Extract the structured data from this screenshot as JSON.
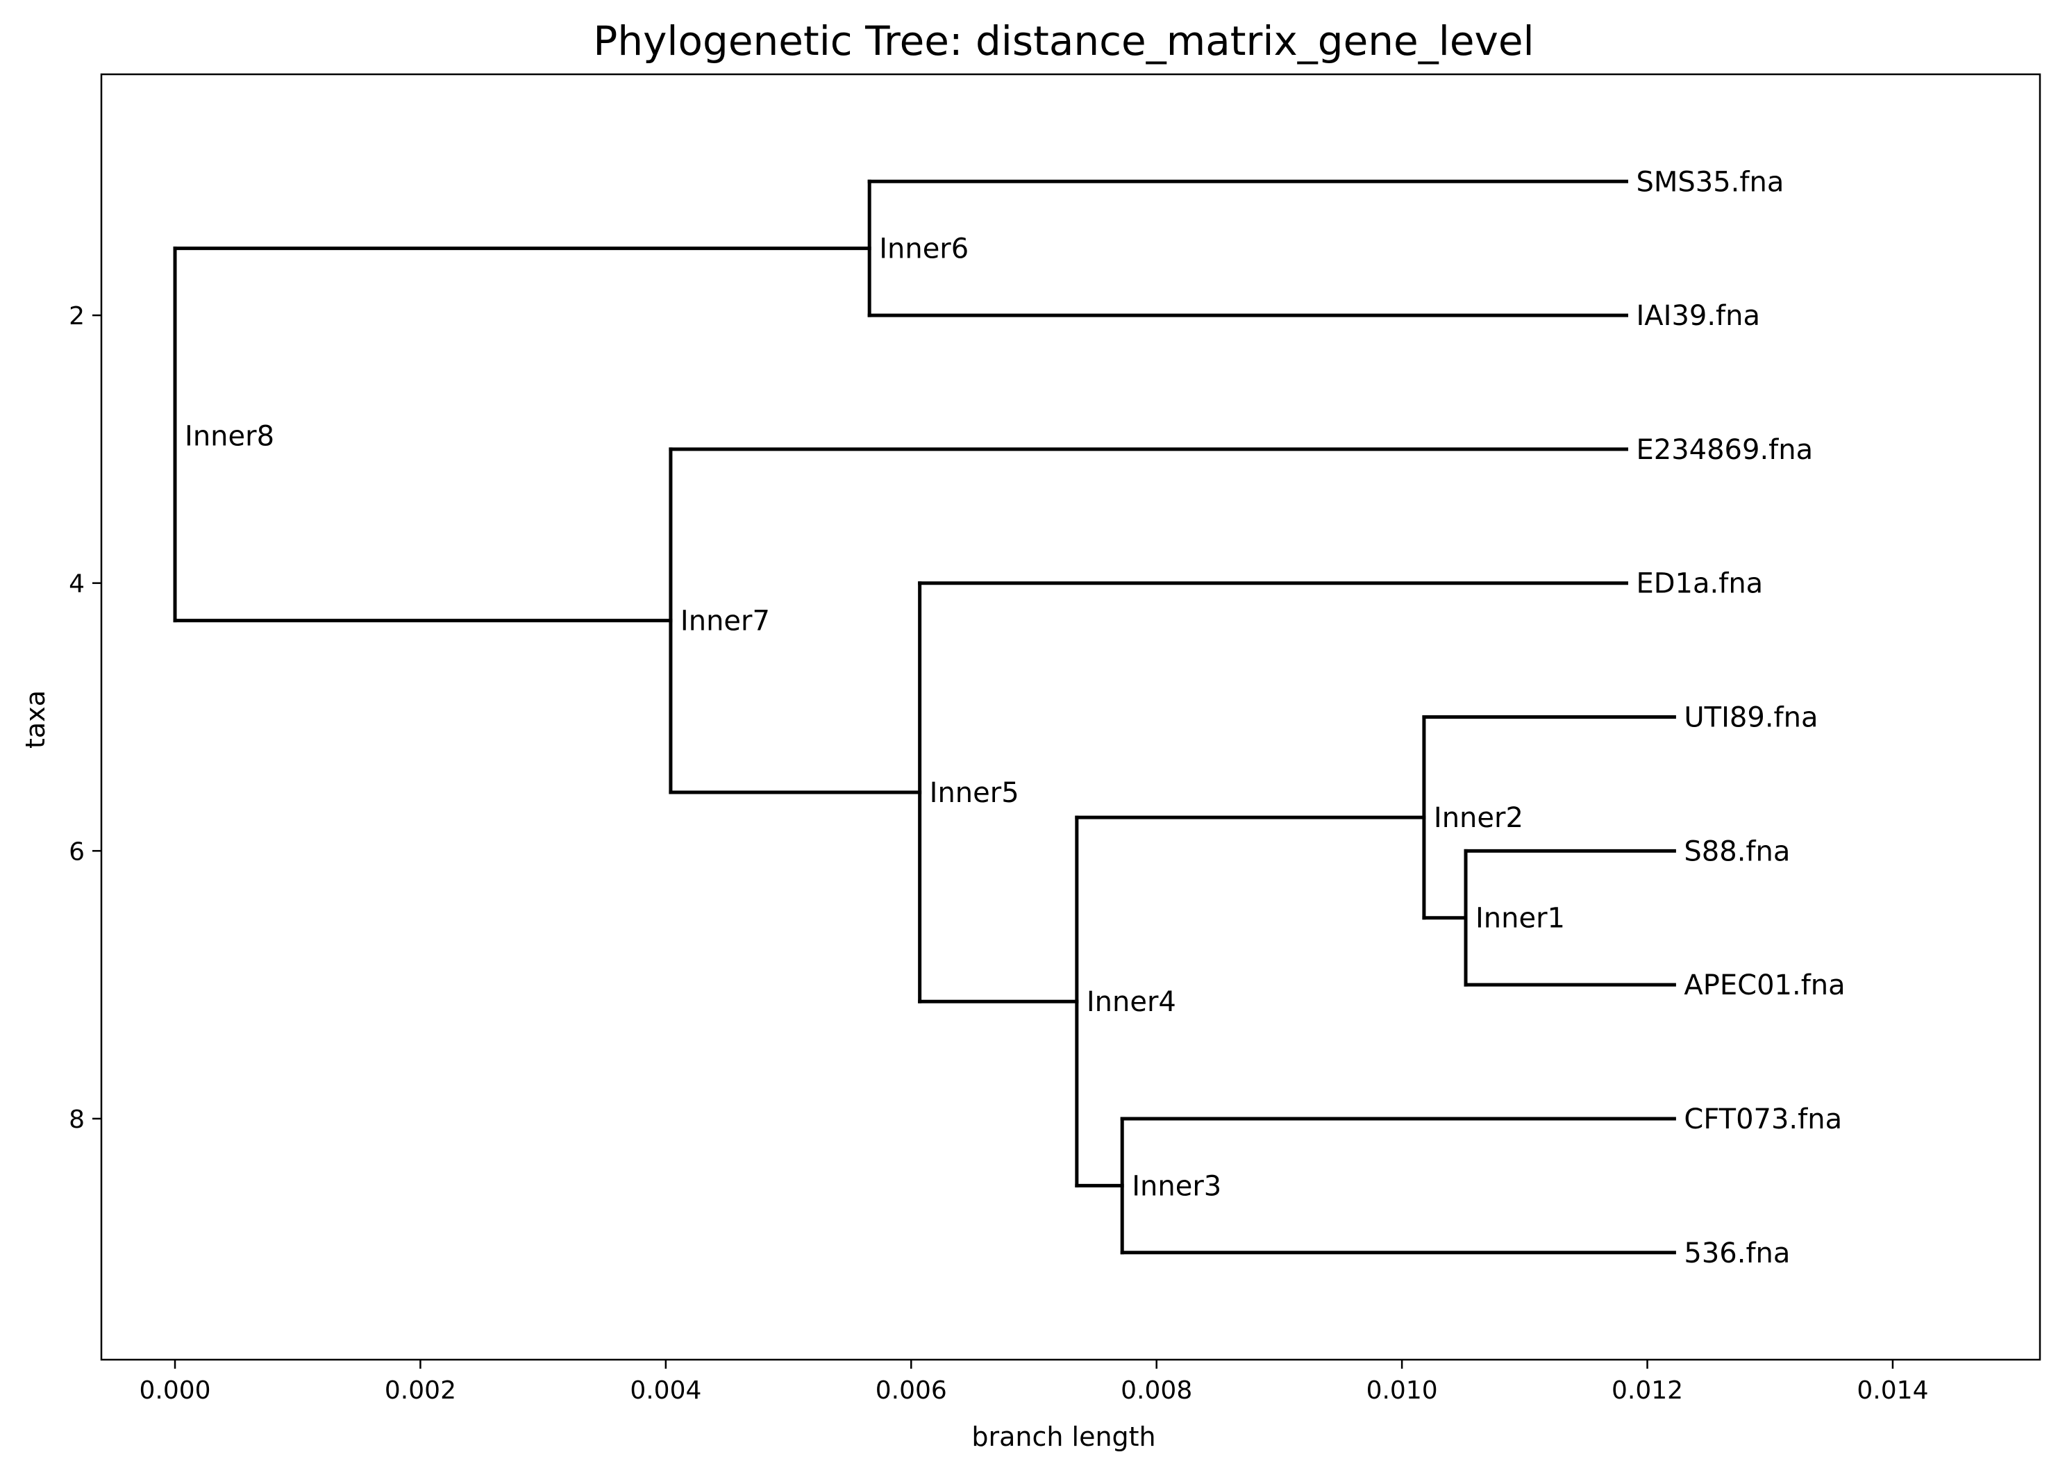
{
  "chart_data": {
    "type": "dendrogram",
    "title": "Phylogenetic Tree: distance_matrix_gene_level",
    "xlabel": "branch length",
    "ylabel": "taxa",
    "xlim": [
      -0.0006,
      0.0152
    ],
    "ylim": [
      9.8,
      0.2
    ],
    "x_ticks": [
      {
        "value": 0.0,
        "label": "0.000"
      },
      {
        "value": 0.002,
        "label": "0.002"
      },
      {
        "value": 0.004,
        "label": "0.004"
      },
      {
        "value": 0.006,
        "label": "0.006"
      },
      {
        "value": 0.008,
        "label": "0.008"
      },
      {
        "value": 0.01,
        "label": "0.010"
      },
      {
        "value": 0.012,
        "label": "0.012"
      },
      {
        "value": 0.014,
        "label": "0.014"
      }
    ],
    "y_ticks": [
      {
        "value": 2,
        "label": "2"
      },
      {
        "value": 4,
        "label": "4"
      },
      {
        "value": 6,
        "label": "6"
      },
      {
        "value": 8,
        "label": "8"
      }
    ],
    "grid": false,
    "nodes": [
      {
        "id": "n-sms35",
        "label": "SMS35.fna",
        "x": 0.01183,
        "y": 1,
        "leaf": true
      },
      {
        "id": "n-iai39",
        "label": "IAI39.fna",
        "x": 0.01183,
        "y": 2,
        "leaf": true
      },
      {
        "id": "n-e234869",
        "label": "E234869.fna",
        "x": 0.01183,
        "y": 3,
        "leaf": true
      },
      {
        "id": "n-ed1a",
        "label": "ED1a.fna",
        "x": 0.01183,
        "y": 4,
        "leaf": true
      },
      {
        "id": "n-uti89",
        "label": "UTI89.fna",
        "x": 0.01222,
        "y": 5,
        "leaf": true
      },
      {
        "id": "n-s88",
        "label": "S88.fna",
        "x": 0.01222,
        "y": 6,
        "leaf": true
      },
      {
        "id": "n-apec01",
        "label": "APEC01.fna",
        "x": 0.01222,
        "y": 7,
        "leaf": true
      },
      {
        "id": "n-cft073",
        "label": "CFT073.fna",
        "x": 0.01222,
        "y": 8,
        "leaf": true
      },
      {
        "id": "n-536",
        "label": "536.fna",
        "x": 0.01222,
        "y": 9,
        "leaf": true
      },
      {
        "id": "n-inner1",
        "label": "Inner1",
        "x": 0.01052,
        "y": 6.5,
        "leaf": false
      },
      {
        "id": "n-inner2",
        "label": "Inner2",
        "x": 0.01018,
        "y": 5.75,
        "leaf": false
      },
      {
        "id": "n-inner3",
        "label": "Inner3",
        "x": 0.00772,
        "y": 8.5,
        "leaf": false
      },
      {
        "id": "n-inner4",
        "label": "Inner4",
        "x": 0.00735,
        "y": 7.125,
        "leaf": false
      },
      {
        "id": "n-inner5",
        "label": "Inner5",
        "x": 0.00607,
        "y": 5.5625,
        "leaf": false
      },
      {
        "id": "n-inner6",
        "label": "Inner6",
        "x": 0.00566,
        "y": 1.5,
        "leaf": false
      },
      {
        "id": "n-inner7",
        "label": "Inner7",
        "x": 0.00404,
        "y": 4.28,
        "leaf": false
      },
      {
        "id": "n-inner8",
        "label": "Inner8",
        "x": 0.0,
        "y": 2.9,
        "leaf": false
      }
    ],
    "junctions": [
      {
        "node": "n-inner1",
        "y_top": 6,
        "y_bottom": 7
      },
      {
        "node": "n-inner2",
        "y_top": 5,
        "y_bottom": 6.5
      },
      {
        "node": "n-inner3",
        "y_top": 8,
        "y_bottom": 9
      },
      {
        "node": "n-inner4",
        "y_top": 5.75,
        "y_bottom": 8.5
      },
      {
        "node": "n-inner5",
        "y_top": 4,
        "y_bottom": 7.125
      },
      {
        "node": "n-inner6",
        "y_top": 1,
        "y_bottom": 2
      },
      {
        "node": "n-inner7",
        "y_top": 3,
        "y_bottom": 5.5625
      },
      {
        "node": "n-inner8",
        "y_top": 1.5,
        "y_bottom": 4.28
      }
    ],
    "edges": [
      {
        "from": "n-inner1",
        "to": "n-s88"
      },
      {
        "from": "n-inner1",
        "to": "n-apec01"
      },
      {
        "from": "n-inner2",
        "to": "n-uti89"
      },
      {
        "from": "n-inner2",
        "to": "n-inner1"
      },
      {
        "from": "n-inner3",
        "to": "n-cft073"
      },
      {
        "from": "n-inner3",
        "to": "n-536"
      },
      {
        "from": "n-inner4",
        "to": "n-inner2"
      },
      {
        "from": "n-inner4",
        "to": "n-inner3"
      },
      {
        "from": "n-inner5",
        "to": "n-ed1a"
      },
      {
        "from": "n-inner5",
        "to": "n-inner4"
      },
      {
        "from": "n-inner6",
        "to": "n-sms35"
      },
      {
        "from": "n-inner6",
        "to": "n-iai39"
      },
      {
        "from": "n-inner7",
        "to": "n-e234869"
      },
      {
        "from": "n-inner7",
        "to": "n-inner5"
      },
      {
        "from": "n-inner8",
        "to": "n-inner6"
      },
      {
        "from": "n-inner8",
        "to": "n-inner7"
      }
    ]
  }
}
